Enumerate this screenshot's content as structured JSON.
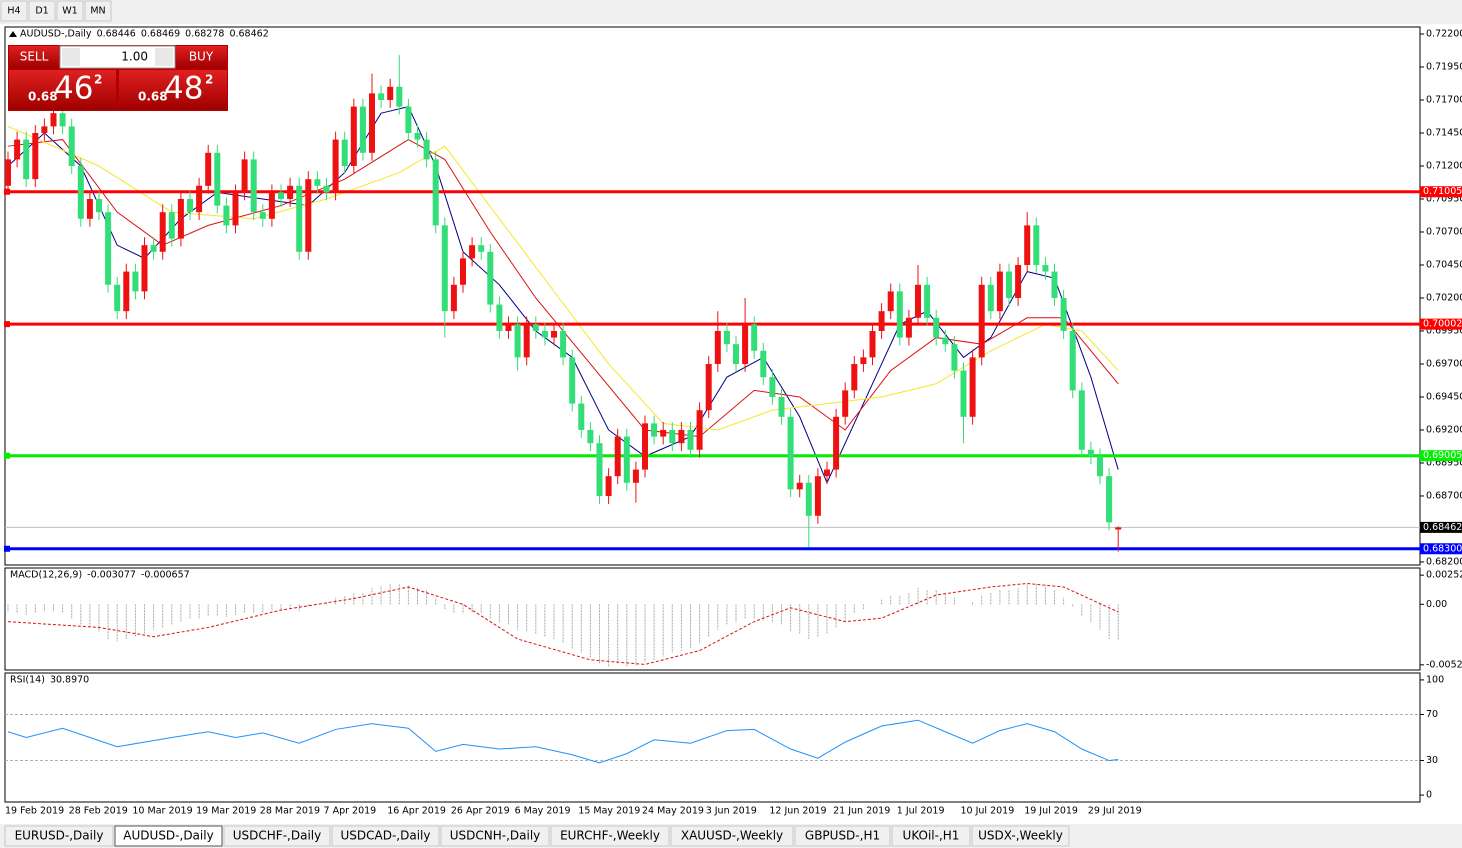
{
  "toolbar": {
    "timeframes": [
      "H4",
      "D1",
      "W1",
      "MN"
    ]
  },
  "trade": {
    "sell": "SELL",
    "buy": "BUY",
    "lot": "1.00",
    "bid": [
      "0.68",
      "46",
      "2"
    ],
    "ask": [
      "0.68",
      "48",
      "2"
    ]
  },
  "tabs": [
    "EURUSD-,Daily",
    "AUDUSD-,Daily",
    "USDCHF-,Daily",
    "USDCAD-,Daily",
    "USDCNH-,Daily",
    "EURCHF-,Weekly",
    "XAUUSD-,Weekly",
    "GBPUSD-,H1",
    "UKOil-,H1",
    "USDX-,Weekly"
  ],
  "active_tab": "AUDUSD-,Daily",
  "chart_data": [
    {
      "type": "candlestick",
      "title": "AUDUSD-,Daily",
      "up_color": "#ee1111",
      "down_color": "#33dd77",
      "categories": [
        "19 Feb 2019",
        null,
        null,
        null,
        null,
        null,
        null,
        "28 Feb 2019",
        null,
        null,
        null,
        null,
        null,
        null,
        "10 Mar 2019",
        null,
        null,
        null,
        null,
        null,
        null,
        "19 Mar 2019",
        null,
        null,
        null,
        null,
        null,
        null,
        "28 Mar 2019",
        null,
        null,
        null,
        null,
        null,
        null,
        "7 Apr 2019",
        null,
        null,
        null,
        null,
        null,
        null,
        "16 Apr 2019",
        null,
        null,
        null,
        null,
        null,
        null,
        "26 Apr 2019",
        null,
        null,
        null,
        null,
        null,
        null,
        "6 May 2019",
        null,
        null,
        null,
        null,
        null,
        null,
        "15 May 2019",
        null,
        null,
        null,
        null,
        null,
        null,
        "24 May 2019",
        null,
        null,
        null,
        null,
        null,
        null,
        "3 Jun 2019",
        null,
        null,
        null,
        null,
        null,
        null,
        "12 Jun 2019",
        null,
        null,
        null,
        null,
        null,
        null,
        "21 Jun 2019",
        null,
        null,
        null,
        null,
        null,
        null,
        "1 Jul 2019",
        null,
        null,
        null,
        null,
        null,
        null,
        "10 Jul 2019",
        null,
        null,
        null,
        null,
        null,
        null,
        "19 Jul 2019",
        null,
        null,
        null,
        null,
        null,
        null,
        "29 Jul 2019",
        null,
        null,
        null
      ],
      "open": [
        0.7105,
        0.7125,
        0.714,
        0.711,
        0.7145,
        0.715,
        0.716,
        0.715,
        0.712,
        0.708,
        0.7095,
        0.7085,
        0.703,
        0.701,
        0.704,
        0.7025,
        0.706,
        0.7055,
        0.7085,
        0.7065,
        0.7095,
        0.7085,
        0.7105,
        0.713,
        0.709,
        0.7075,
        0.71,
        0.7125,
        0.7085,
        0.708,
        0.71,
        0.7095,
        0.7105,
        0.7055,
        0.711,
        0.7105,
        0.71,
        0.714,
        0.712,
        0.7165,
        0.713,
        0.7175,
        0.717,
        0.718,
        0.7165,
        0.7145,
        0.714,
        0.7125,
        0.7075,
        0.701,
        0.703,
        0.705,
        0.706,
        0.7055,
        0.7015,
        0.6995,
        0.7,
        0.6975,
        0.7,
        0.6995,
        0.699,
        0.6995,
        0.6975,
        0.694,
        0.692,
        0.691,
        0.687,
        0.6885,
        0.6915,
        0.688,
        0.689,
        0.6925,
        0.6915,
        0.692,
        0.691,
        0.692,
        0.6905,
        0.6935,
        0.697,
        0.6995,
        0.6985,
        0.697,
        0.7,
        0.698,
        0.696,
        0.6945,
        0.693,
        0.6875,
        0.688,
        0.6855,
        0.6885,
        0.689,
        0.693,
        0.695,
        0.697,
        0.6975,
        0.6995,
        0.701,
        0.7025,
        0.699,
        0.7005,
        0.703,
        0.7005,
        0.699,
        0.6985,
        0.6965,
        0.693,
        0.6975,
        0.703,
        0.701,
        0.704,
        0.702,
        0.7045,
        0.7075,
        0.7045,
        0.704,
        0.702,
        0.6995,
        0.695,
        0.6905,
        0.69,
        0.6885,
        0.68446
      ],
      "high": [
        0.7131,
        0.7146,
        0.7146,
        0.7151,
        0.7156,
        0.7166,
        0.7166,
        0.7156,
        0.7126,
        0.7101,
        0.7101,
        0.7091,
        0.7036,
        0.7046,
        0.7046,
        0.7066,
        0.7066,
        0.7091,
        0.7091,
        0.7101,
        0.7101,
        0.7111,
        0.7136,
        0.7136,
        0.7096,
        0.7106,
        0.7131,
        0.7131,
        0.7091,
        0.7106,
        0.7106,
        0.7111,
        0.7111,
        0.7116,
        0.7116,
        0.7111,
        0.7146,
        0.7146,
        0.7171,
        0.7171,
        0.719,
        0.7181,
        0.7186,
        0.7204,
        0.7171,
        0.7151,
        0.7146,
        0.7131,
        0.7081,
        0.7036,
        0.7056,
        0.7066,
        0.7066,
        0.7061,
        0.7021,
        0.7006,
        0.7006,
        0.7006,
        0.7006,
        0.7001,
        0.7001,
        0.7001,
        0.6981,
        0.6946,
        0.6926,
        0.6916,
        0.6891,
        0.6921,
        0.6921,
        0.6896,
        0.6931,
        0.6931,
        0.6926,
        0.6926,
        0.6926,
        0.6926,
        0.6941,
        0.6976,
        0.701,
        0.7001,
        0.6991,
        0.702,
        0.7006,
        0.6986,
        0.6966,
        0.6951,
        0.6936,
        0.6886,
        0.6886,
        0.6891,
        0.6896,
        0.6936,
        0.6956,
        0.6976,
        0.6981,
        0.7001,
        0.7016,
        0.7031,
        0.7031,
        0.7011,
        0.7045,
        0.7036,
        0.7011,
        0.6996,
        0.6991,
        0.6971,
        0.6981,
        0.7036,
        0.7036,
        0.7046,
        0.7046,
        0.7051,
        0.7085,
        0.7081,
        0.7051,
        0.7046,
        0.7026,
        0.7001,
        0.6956,
        0.6911,
        0.6906,
        0.6891,
        0.68469
      ],
      "low": [
        0.7099,
        0.7119,
        0.7104,
        0.7104,
        0.7139,
        0.7144,
        0.7144,
        0.7114,
        0.7074,
        0.7074,
        0.7079,
        0.7024,
        0.7004,
        0.7004,
        0.7019,
        0.7019,
        0.7049,
        0.7049,
        0.7059,
        0.7059,
        0.7079,
        0.7079,
        0.7099,
        0.7084,
        0.7069,
        0.7069,
        0.7094,
        0.7079,
        0.7074,
        0.7074,
        0.7089,
        0.7089,
        0.7049,
        0.7049,
        0.7099,
        0.7094,
        0.7094,
        0.7114,
        0.7114,
        0.7124,
        0.7124,
        0.7164,
        0.7164,
        0.7159,
        0.7139,
        0.7134,
        0.7119,
        0.7069,
        0.699,
        0.7004,
        0.7024,
        0.7044,
        0.7049,
        0.7009,
        0.6989,
        0.6989,
        0.6965,
        0.6969,
        0.6989,
        0.6984,
        0.6984,
        0.6969,
        0.6934,
        0.6914,
        0.6904,
        0.6864,
        0.6864,
        0.6879,
        0.6874,
        0.6865,
        0.6884,
        0.6909,
        0.6909,
        0.6904,
        0.6904,
        0.6899,
        0.6899,
        0.6929,
        0.6964,
        0.6979,
        0.6964,
        0.6964,
        0.6974,
        0.6954,
        0.6939,
        0.6924,
        0.6869,
        0.6869,
        0.6831,
        0.6849,
        0.6879,
        0.6884,
        0.6924,
        0.6944,
        0.6964,
        0.6969,
        0.6989,
        0.7004,
        0.6984,
        0.6984,
        0.6999,
        0.6999,
        0.6984,
        0.6979,
        0.6959,
        0.691,
        0.6924,
        0.6969,
        0.7004,
        0.7004,
        0.7014,
        0.7014,
        0.7039,
        0.7039,
        0.7034,
        0.7014,
        0.6989,
        0.6944,
        0.6899,
        0.6894,
        0.6879,
        0.6844,
        0.68278
      ],
      "close": [
        0.7125,
        0.714,
        0.711,
        0.7145,
        0.715,
        0.716,
        0.715,
        0.712,
        0.708,
        0.7095,
        0.7085,
        0.703,
        0.701,
        0.704,
        0.7025,
        0.706,
        0.7055,
        0.7085,
        0.7065,
        0.7095,
        0.7085,
        0.7105,
        0.713,
        0.709,
        0.7075,
        0.71,
        0.7125,
        0.7085,
        0.708,
        0.71,
        0.7095,
        0.7105,
        0.7055,
        0.711,
        0.7105,
        0.71,
        0.714,
        0.712,
        0.7165,
        0.713,
        0.7175,
        0.717,
        0.718,
        0.7165,
        0.7145,
        0.714,
        0.7125,
        0.7075,
        0.701,
        0.703,
        0.705,
        0.706,
        0.7055,
        0.7015,
        0.6995,
        0.7,
        0.6975,
        0.7,
        0.6995,
        0.699,
        0.6995,
        0.6975,
        0.694,
        0.692,
        0.691,
        0.687,
        0.6885,
        0.6915,
        0.688,
        0.689,
        0.6925,
        0.6915,
        0.692,
        0.691,
        0.692,
        0.6905,
        0.6935,
        0.697,
        0.6995,
        0.6985,
        0.697,
        0.7,
        0.698,
        0.696,
        0.6945,
        0.693,
        0.6875,
        0.688,
        0.6855,
        0.6885,
        0.689,
        0.693,
        0.695,
        0.697,
        0.6975,
        0.6995,
        0.701,
        0.7025,
        0.699,
        0.7005,
        0.703,
        0.7005,
        0.699,
        0.6985,
        0.6965,
        0.693,
        0.6975,
        0.703,
        0.701,
        0.704,
        0.702,
        0.7045,
        0.7075,
        0.7045,
        0.704,
        0.702,
        0.6995,
        0.695,
        0.6905,
        0.69,
        0.6885,
        0.685,
        0.68462
      ],
      "overlays": [
        {
          "color": "#00008b",
          "x": [
            0,
            4,
            8,
            12,
            15,
            19,
            23,
            28,
            33,
            37,
            41,
            44,
            47,
            50,
            54,
            58,
            62,
            66,
            70,
            75,
            79,
            83,
            87,
            90,
            94,
            98,
            101,
            105,
            108,
            112,
            115,
            119,
            122
          ],
          "values": [
            0.712,
            0.7145,
            0.712,
            0.706,
            0.705,
            0.708,
            0.71,
            0.7095,
            0.709,
            0.7115,
            0.716,
            0.7165,
            0.712,
            0.7055,
            0.703,
            0.6995,
            0.6975,
            0.692,
            0.69,
            0.6915,
            0.696,
            0.6975,
            0.693,
            0.688,
            0.694,
            0.7,
            0.701,
            0.6975,
            0.699,
            0.704,
            0.7035,
            0.696,
            0.689
          ]
        },
        {
          "color": "#dd1111",
          "x": [
            0,
            6,
            12,
            17,
            22,
            30,
            37,
            44,
            48,
            53,
            58,
            64,
            70,
            76,
            82,
            87,
            92,
            97,
            102,
            107,
            112,
            116,
            122
          ],
          "values": [
            0.7135,
            0.714,
            0.7085,
            0.706,
            0.7075,
            0.709,
            0.711,
            0.714,
            0.7125,
            0.707,
            0.702,
            0.697,
            0.692,
            0.6915,
            0.695,
            0.6945,
            0.692,
            0.6965,
            0.699,
            0.6985,
            0.7005,
            0.7005,
            0.6955
          ]
        },
        {
          "color": "#f5e62a",
          "x": [
            0,
            10,
            18,
            27,
            35,
            43,
            48,
            54,
            60,
            66,
            72,
            78,
            84,
            90,
            96,
            102,
            108,
            114,
            118,
            122
          ],
          "values": [
            0.715,
            0.712,
            0.7085,
            0.708,
            0.7095,
            0.7115,
            0.7135,
            0.708,
            0.7025,
            0.697,
            0.6925,
            0.692,
            0.6935,
            0.694,
            0.6945,
            0.6955,
            0.698,
            0.7,
            0.6995,
            0.6965
          ]
        }
      ],
      "levels": [
        {
          "value": 0.71005,
          "color": "#ff0000"
        },
        {
          "value": 0.70002,
          "color": "#ff0000"
        },
        {
          "value": 0.69005,
          "color": "#00ee00"
        },
        {
          "value": 0.683,
          "label": "0.68300",
          "color": "#0000ff"
        }
      ],
      "price_line_color": "#c0c0c0",
      "ylim": [
        0.68177,
        0.72253
      ],
      "yticks": [
        {
          "value": 0.722,
          "label": "0.72200"
        },
        {
          "value": 0.7195,
          "label": "0.71950"
        },
        {
          "value": 0.717,
          "label": "0.71700"
        },
        {
          "value": 0.7145,
          "label": "0.71450"
        },
        {
          "value": 0.712,
          "label": "0.71200"
        },
        {
          "value": 0.7095,
          "label": "0.70950"
        },
        {
          "value": 0.707,
          "label": "0.70700"
        },
        {
          "value": 0.7045,
          "label": "0.70450"
        },
        {
          "value": 0.702,
          "label": "0.70200"
        },
        {
          "value": 0.6995,
          "label": "0.69950"
        },
        {
          "value": 0.697,
          "label": "0.69700"
        },
        {
          "value": 0.6945,
          "label": "0.69450"
        },
        {
          "value": 0.692,
          "label": "0.69200"
        },
        {
          "value": 0.6895,
          "label": "0.68950"
        },
        {
          "value": 0.687,
          "label": "0.68700"
        },
        {
          "value": 0.682,
          "label": "0.68200"
        }
      ]
    },
    {
      "type": "macd",
      "title": "MACD(12,26,9)",
      "histogram_color": "#a8a8a8",
      "histogram": [
        -0.0006,
        -0.0008,
        -0.0009,
        -0.0007,
        -0.0006,
        -0.0006,
        -0.0008,
        -0.0012,
        -0.0018,
        -0.002,
        -0.0024,
        -0.003,
        -0.0032,
        -0.003,
        -0.0028,
        -0.0025,
        -0.0022,
        -0.002,
        -0.0018,
        -0.0015,
        -0.0013,
        -0.0012,
        -0.001,
        -0.001,
        -0.0011,
        -0.0009,
        -0.0007,
        -0.0008,
        -0.0008,
        -0.0006,
        -0.0005,
        -0.0004,
        -0.0006,
        -0.0002,
        0.0,
        0.0002,
        0.0006,
        0.0007,
        0.001,
        0.001,
        0.0014,
        0.0016,
        0.0018,
        0.0018,
        0.0016,
        0.0014,
        0.0012,
        0.0006,
        -0.0004,
        -0.0008,
        -0.0008,
        -0.0007,
        -0.0008,
        -0.0012,
        -0.0016,
        -0.0018,
        -0.0022,
        -0.0024,
        -0.0026,
        -0.0028,
        -0.003,
        -0.0033,
        -0.0038,
        -0.0042,
        -0.0046,
        -0.0052,
        -0.0054,
        -0.0052,
        -0.0054,
        -0.0053,
        -0.005,
        -0.0048,
        -0.0045,
        -0.0042,
        -0.004,
        -0.0038,
        -0.0034,
        -0.0028,
        -0.0022,
        -0.0018,
        -0.0016,
        -0.0012,
        -0.0012,
        -0.0014,
        -0.0016,
        -0.0018,
        -0.0024,
        -0.0026,
        -0.003,
        -0.0028,
        -0.0026,
        -0.002,
        -0.0014,
        -0.0008,
        -0.0004,
        0.0,
        0.0004,
        0.0008,
        0.0008,
        0.001,
        0.0014,
        0.0013,
        0.0012,
        0.001,
        0.0006,
        0.0,
        0.0002,
        0.0008,
        0.001,
        0.0012,
        0.0012,
        0.0014,
        0.0018,
        0.0018,
        0.0016,
        0.0012,
        0.0006,
        -0.0002,
        -0.001,
        -0.0016,
        -0.0022,
        -0.003,
        -0.003077
      ],
      "signal": {
        "color": "#dd1111",
        "x": [
          0,
          10,
          16,
          22,
          30,
          38,
          44,
          50,
          56,
          64,
          70,
          76,
          82,
          86,
          92,
          96,
          102,
          108,
          112,
          116,
          122
        ],
        "values": [
          -0.0015,
          -0.002,
          -0.0028,
          -0.002,
          -0.0005,
          0.0005,
          0.0015,
          0.0,
          -0.003,
          -0.0048,
          -0.0052,
          -0.004,
          -0.0015,
          -0.0003,
          -0.0015,
          -0.0012,
          0.0008,
          0.0015,
          0.0018,
          0.0015,
          -0.000657
        ]
      },
      "ylim": [
        -0.00568,
        0.00314
      ],
      "yticks": [
        0.002523,
        {
          "value": 0,
          "label": "0.00"
        },
        -0.005234
      ]
    },
    {
      "type": "line",
      "title": "RSI(14)",
      "current_label": "30.8970",
      "series": [
        {
          "color": "#1e90ff",
          "x": [
            0,
            2,
            6,
            9,
            12,
            15,
            18,
            22,
            25,
            28,
            32,
            36,
            40,
            44,
            47,
            50,
            54,
            58,
            62,
            65,
            68,
            71,
            75,
            79,
            82,
            86,
            89,
            92,
            96,
            100,
            103,
            106,
            109,
            112,
            115,
            118,
            121,
            122
          ],
          "values": [
            55,
            50,
            58,
            50,
            42,
            46,
            50,
            55,
            50,
            54,
            45,
            57,
            62,
            58,
            38,
            44,
            40,
            42,
            35,
            28,
            36,
            48,
            45,
            56,
            57,
            40,
            32,
            46,
            60,
            65,
            55,
            45,
            56,
            62,
            55,
            40,
            30,
            30.897
          ]
        }
      ],
      "levels": [
        70,
        30
      ],
      "ylim": [
        -6,
        106
      ],
      "yticks": [
        100,
        70,
        30,
        0
      ]
    }
  ]
}
